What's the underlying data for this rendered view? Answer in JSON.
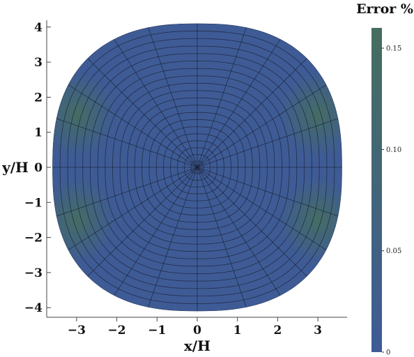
{
  "chart_data": {
    "type": "heatmap",
    "title": "",
    "xlabel": "x/H",
    "ylabel": "y/H",
    "xlim": [
      -3.7,
      3.7
    ],
    "ylim": [
      -4.3,
      4.3
    ],
    "x_ticks": [
      {
        "value": -3,
        "label": "−3"
      },
      {
        "value": -2,
        "label": "−2"
      },
      {
        "value": -1,
        "label": "−1"
      },
      {
        "value": 0,
        "label": "0"
      },
      {
        "value": 1,
        "label": "1"
      },
      {
        "value": 2,
        "label": "2"
      },
      {
        "value": 3,
        "label": "3"
      }
    ],
    "y_ticks": [
      {
        "value": 4,
        "label": "4"
      },
      {
        "value": 3,
        "label": "3"
      },
      {
        "value": 2,
        "label": "2"
      },
      {
        "value": 1,
        "label": "1"
      },
      {
        "value": 0,
        "label": "0"
      },
      {
        "value": -1,
        "label": "−1"
      },
      {
        "value": -2,
        "label": "−2"
      },
      {
        "value": -3,
        "label": "−3"
      },
      {
        "value": -4,
        "label": "−4"
      }
    ],
    "domain": {
      "shape": "superellipse",
      "a": 3.6,
      "b": 4.1,
      "exponent": 2.5
    },
    "mesh": {
      "radial_lines": 24,
      "rings": 20
    },
    "error_field": {
      "baseline": 0.012,
      "hotspots": [
        {
          "x": 3.0,
          "y": 1.5,
          "value": 0.15
        },
        {
          "x": -3.0,
          "y": 1.5,
          "value": 0.15
        },
        {
          "x": 3.0,
          "y": -1.5,
          "value": 0.15
        },
        {
          "x": -3.0,
          "y": -1.5,
          "value": 0.15
        }
      ]
    },
    "colorbar": {
      "title": "Error %",
      "range": [
        0,
        0.16
      ],
      "ticks": [
        {
          "value": 0,
          "label": "0"
        },
        {
          "value": 0.05,
          "label": "0.05"
        },
        {
          "value": 0.1,
          "label": "0.10"
        },
        {
          "value": 0.15,
          "label": "0.15"
        }
      ],
      "color_low": "#3e5b96",
      "color_high": "#456e5f"
    },
    "grid": false,
    "legend": "none"
  }
}
